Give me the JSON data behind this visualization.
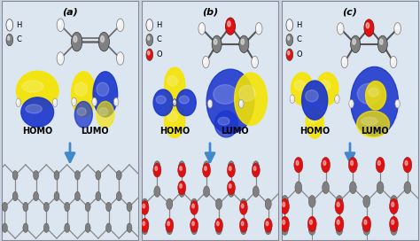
{
  "panel_labels": [
    "(a)",
    "(b)",
    "(c)"
  ],
  "homo_lumo_labels": [
    "HOMO",
    "LUMO"
  ],
  "legend_a": [
    [
      "H",
      "#f0f0f0"
    ],
    [
      "C",
      "#808080"
    ]
  ],
  "legend_bc": [
    [
      "H",
      "#f0f0f0"
    ],
    [
      "C",
      "#808080"
    ],
    [
      "O",
      "#dd1111"
    ]
  ],
  "orbital_yellow": "#f5e400",
  "orbital_blue": "#1a35cc",
  "arrow_color": "#4488cc",
  "bg_color": "#e8eef5",
  "panel_bg": "#dce6f0",
  "title_fontsize": 8,
  "label_fontsize": 7,
  "fig_width": 4.74,
  "fig_height": 2.72,
  "dpi": 100
}
